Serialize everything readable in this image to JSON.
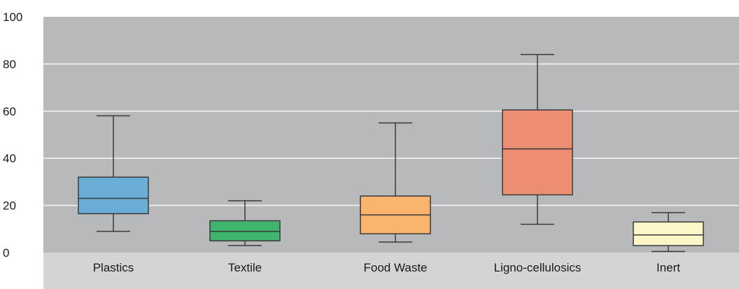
{
  "chart_data": {
    "type": "boxplot",
    "ylim": [
      0,
      100
    ],
    "yticks": [
      0,
      20,
      40,
      60,
      80,
      100
    ],
    "grid": true,
    "categories": [
      "Plastics",
      "Textile",
      "Food Waste",
      "Ligno-cellulosics",
      "Inert"
    ],
    "boxes": [
      {
        "category": "Plastics",
        "min": 9,
        "q1": 16.5,
        "median": 23,
        "q3": 32,
        "max": 58,
        "color": "#6aaed6"
      },
      {
        "category": "Textile",
        "min": 3,
        "q1": 5,
        "median": 9,
        "q3": 13.5,
        "max": 22,
        "color": "#3fb56e"
      },
      {
        "category": "Food Waste",
        "min": 4.5,
        "q1": 8,
        "median": 16,
        "q3": 24,
        "max": 55,
        "color": "#fbb46e"
      },
      {
        "category": "Ligno-cellulosics",
        "min": 12,
        "q1": 24.5,
        "median": 44,
        "q3": 60.5,
        "max": 84,
        "color": "#ec8e73"
      },
      {
        "category": "Inert",
        "min": 0.5,
        "q1": 3,
        "median": 7.5,
        "q3": 13,
        "max": 17,
        "color": "#fdf6c8"
      }
    ],
    "colors": {
      "plot_background": "#b8b9bb",
      "label_band": "#d3d4d6",
      "gridline": "#f2f2f2",
      "box_stroke": "#3a3a3a"
    }
  }
}
